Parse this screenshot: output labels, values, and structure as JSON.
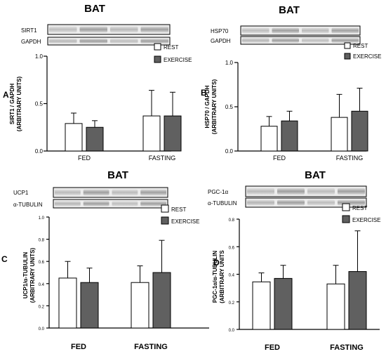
{
  "chart_data": [
    {
      "type": "bar",
      "panel": "A",
      "title": "BAT",
      "blot_labels": [
        "SIRT1",
        "GAPDH"
      ],
      "ylabel_lines": [
        "SIRT1 / GAPDH",
        "(ARBITRARY UNITS)"
      ],
      "categories": [
        "FED",
        "FASTING"
      ],
      "yticks": [
        "0.0",
        "0.5",
        "1.0"
      ],
      "ylim": [
        0,
        1.0
      ],
      "series": [
        {
          "name": "REST",
          "color": "#ffffff",
          "values": [
            0.29,
            0.37
          ],
          "errors": [
            0.11,
            0.27
          ]
        },
        {
          "name": "EXERCISE",
          "color": "#606060",
          "values": [
            0.25,
            0.37
          ],
          "errors": [
            0.07,
            0.25
          ]
        }
      ],
      "legend": "top-right"
    },
    {
      "type": "bar",
      "panel": "B",
      "title": "BAT",
      "blot_labels": [
        "HSP70",
        "GAPDH"
      ],
      "ylabel_lines": [
        "HSP70 / GAPDH",
        "(ARBITRARY UNITS)"
      ],
      "categories": [
        "FED",
        "FASTING"
      ],
      "yticks": [
        "0.0",
        "0.5",
        "1.0"
      ],
      "ylim": [
        0,
        1.0
      ],
      "series": [
        {
          "name": "REST",
          "color": "#ffffff",
          "values": [
            0.28,
            0.38
          ],
          "errors": [
            0.11,
            0.26
          ]
        },
        {
          "name": "EXERCISE",
          "color": "#606060",
          "values": [
            0.34,
            0.45
          ],
          "errors": [
            0.11,
            0.26
          ]
        }
      ],
      "legend": "top-right"
    },
    {
      "type": "bar",
      "panel": "C",
      "title": "BAT",
      "blot_labels": [
        "UCP1",
        "α-TUBULIN"
      ],
      "ylabel_lines": [
        "UCP1/α-TUBULIN",
        "(ARBITRARY UNITS)"
      ],
      "categories": [
        "FED",
        "FASTING"
      ],
      "yticks": [
        "0.0",
        "0.2",
        "0.4",
        "0.6",
        "0.8",
        "1.0"
      ],
      "ylim": [
        0,
        1.0
      ],
      "series": [
        {
          "name": "REST",
          "color": "#ffffff",
          "values": [
            0.45,
            0.41
          ],
          "errors": [
            0.15,
            0.15
          ]
        },
        {
          "name": "EXERCISE",
          "color": "#606060",
          "values": [
            0.41,
            0.5
          ],
          "errors": [
            0.13,
            0.29
          ]
        }
      ],
      "legend": "top-right"
    },
    {
      "type": "bar",
      "panel": "D",
      "title": "BAT",
      "blot_labels": [
        "PGC-1α",
        "α-TUBULIN"
      ],
      "ylabel_lines": [
        "PGC-1α/α-TUBULIN",
        "(ARBITRARY UNITS"
      ],
      "categories": [
        "FED",
        "FASTING"
      ],
      "yticks": [
        "0.0",
        "0.2",
        "0.4",
        "0.6",
        "0.8"
      ],
      "ylim": [
        0,
        0.8
      ],
      "series": [
        {
          "name": "REST",
          "color": "#ffffff",
          "values": [
            0.345,
            0.33
          ],
          "errors": [
            0.065,
            0.135
          ]
        },
        {
          "name": "EXERCISE",
          "color": "#606060",
          "values": [
            0.37,
            0.42
          ],
          "errors": [
            0.095,
            0.295
          ]
        }
      ],
      "legend": "top-right"
    }
  ]
}
